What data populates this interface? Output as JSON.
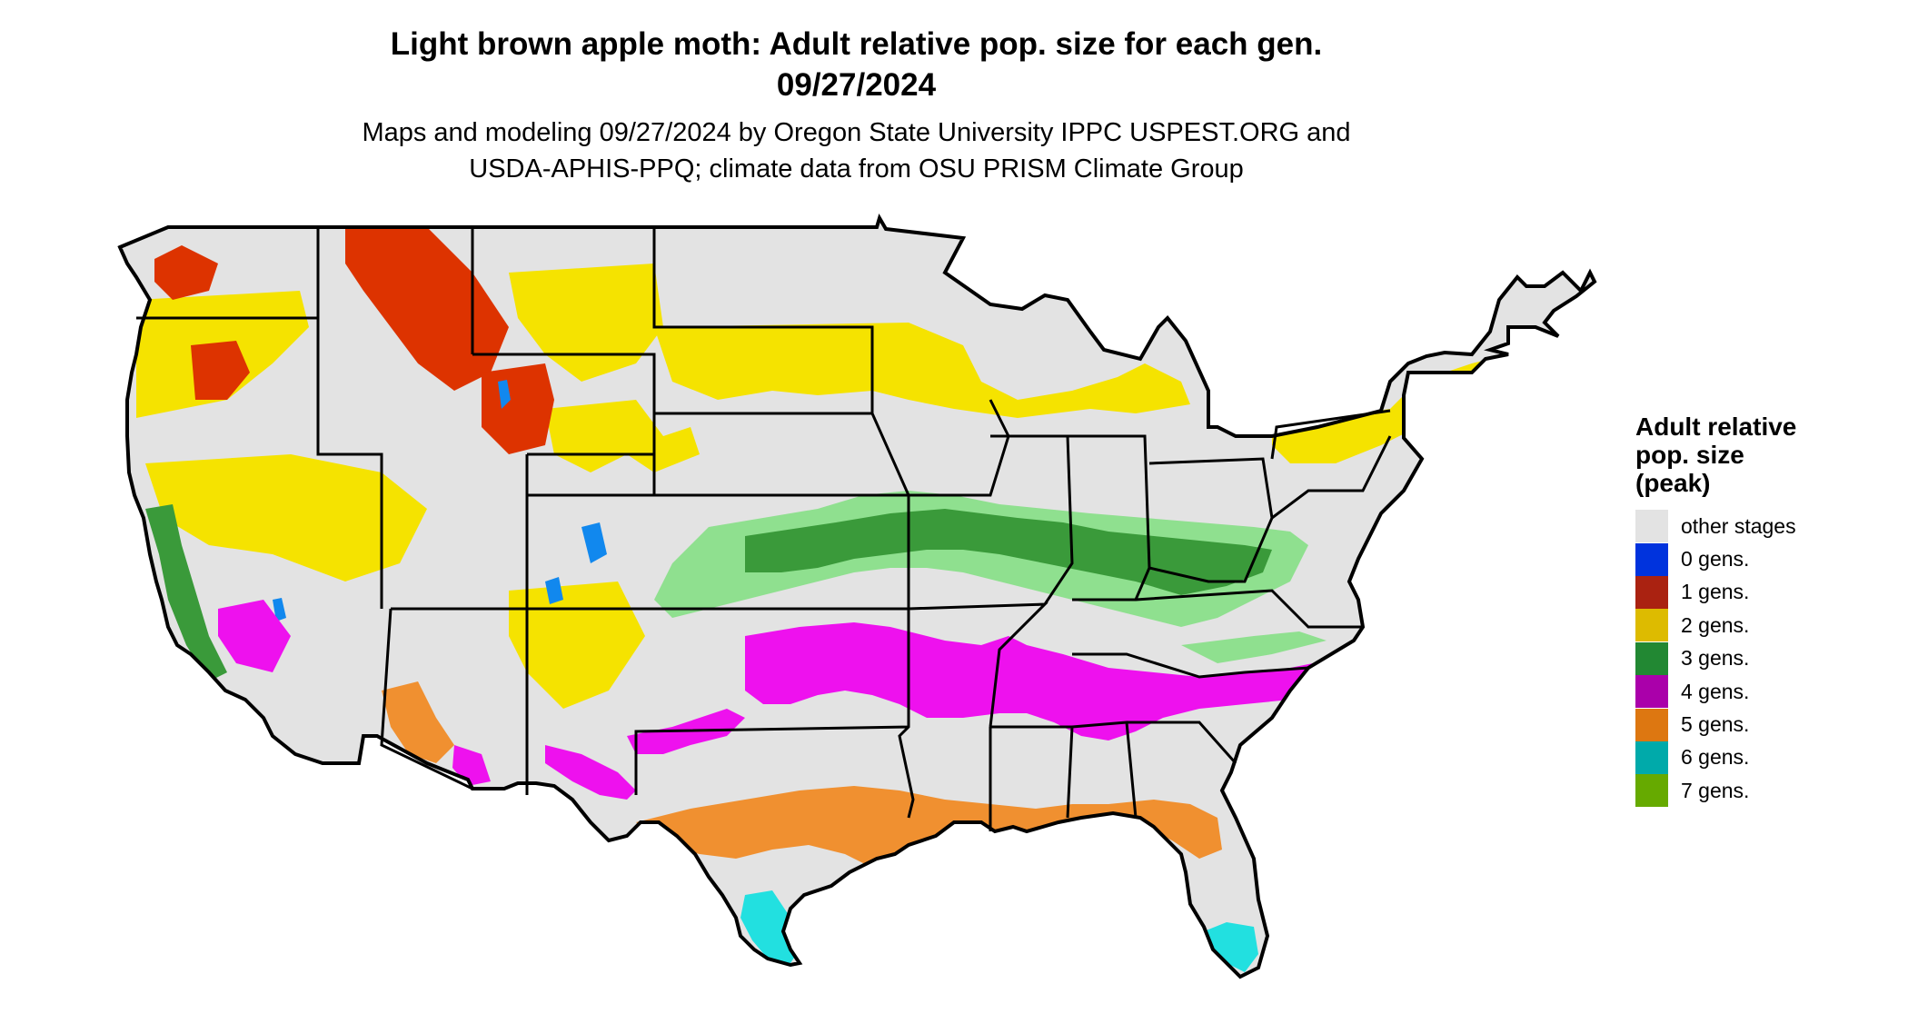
{
  "title": {
    "line1": "Light brown apple moth: Adult relative pop. size for each gen.",
    "line2": "09/27/2024"
  },
  "subtitle": {
    "line1": "Maps and modeling 09/27/2024 by Oregon State University IPPC USPEST.ORG and",
    "line2": "USDA-APHIS-PPQ; climate data from OSU PRISM Climate Group"
  },
  "legend": {
    "title_lines": [
      "Adult relative",
      "pop. size",
      "(peak)"
    ],
    "items": [
      {
        "label": "other stages",
        "color": "#e3e3e3"
      },
      {
        "label": "0 gens.",
        "color": "#0033dd"
      },
      {
        "label": "1 gens.",
        "color": "#aa2211"
      },
      {
        "label": "2 gens.",
        "color": "#ddbb00"
      },
      {
        "label": "3 gens.",
        "color": "#228833"
      },
      {
        "label": "4 gens.",
        "color": "#aa00aa"
      },
      {
        "label": "5 gens.",
        "color": "#dd7711"
      },
      {
        "label": "6 gens.",
        "color": "#00aaaa"
      },
      {
        "label": "7 gens.",
        "color": "#66aa00"
      }
    ]
  },
  "map": {
    "background_color": "#e3e3e3",
    "border_color": "#000000",
    "region_colors": {
      "g1": "#dd3300",
      "g2": "#f5e300",
      "g3": "#3a9a3a",
      "g3_light": "#8fe08f",
      "g4": "#ee11ee",
      "g5": "#f09030",
      "g6": "#22e0e0",
      "g0": "#1188ee"
    }
  }
}
